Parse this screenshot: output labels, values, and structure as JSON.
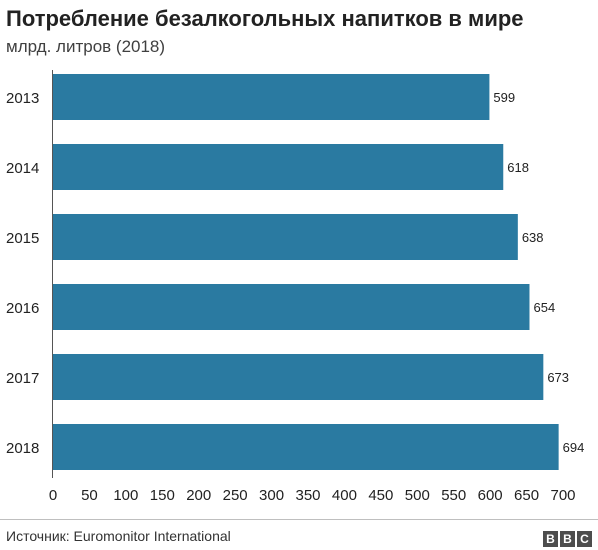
{
  "chart_data": {
    "type": "bar",
    "orientation": "horizontal",
    "title": "Потребление безалкогольных напитков в мире",
    "subtitle": "млрд. литров (2018)",
    "categories": [
      "2013",
      "2014",
      "2015",
      "2016",
      "2017",
      "2018"
    ],
    "values": [
      599,
      618,
      638,
      654,
      673,
      694
    ],
    "data_labels": [
      "599",
      "618",
      "638",
      "654",
      "673",
      "694"
    ],
    "xlim": [
      0,
      700
    ],
    "x_ticks": [
      "0",
      "50",
      "100",
      "150",
      "200",
      "250",
      "300",
      "350",
      "400",
      "450",
      "500",
      "550",
      "600",
      "650",
      "700"
    ],
    "grid": false,
    "bar_color": "#2a7aa1"
  },
  "footer": {
    "source": "Источник: Euromonitor International",
    "logo": [
      "B",
      "B",
      "C"
    ]
  }
}
